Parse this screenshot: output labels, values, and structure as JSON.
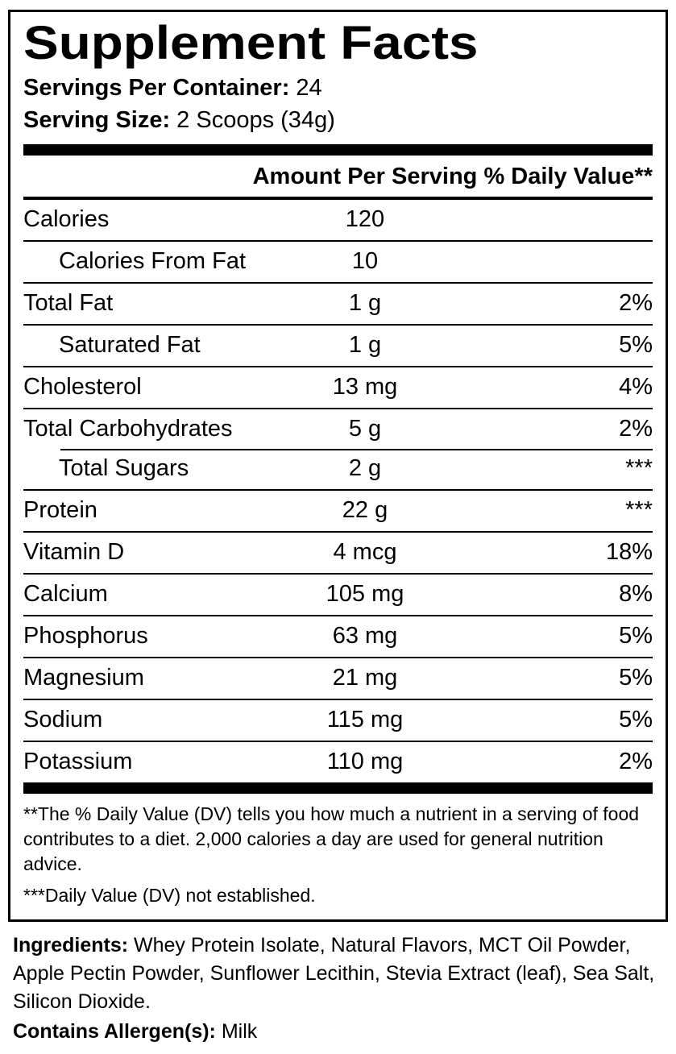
{
  "colors": {
    "text": "#000000",
    "background": "#ffffff"
  },
  "label": {
    "title": "Supplement Facts",
    "servings_per_container_label": "Servings Per Container:",
    "servings_per_container_value": " 24",
    "serving_size_label": "Serving Size:",
    "serving_size_value": " 2 Scoops (34g)",
    "columns": {
      "amount": "Amount Per Serving",
      "dv": "% Daily Value**"
    },
    "rows": [
      {
        "name": "Calories",
        "amount": "120",
        "dv": "",
        "indent": false
      },
      {
        "name": "Calories From Fat",
        "amount": "10",
        "dv": "",
        "indent": true
      },
      {
        "name": "Total Fat",
        "amount": "1 g",
        "dv": "2%",
        "indent": false
      },
      {
        "name": "Saturated Fat",
        "amount": "1 g",
        "dv": "5%",
        "indent": true
      },
      {
        "name": "Cholesterol",
        "amount": "13 mg",
        "dv": "4%",
        "indent": false
      },
      {
        "name": "Total Carbohydrates",
        "amount": "5 g",
        "dv": "2%",
        "indent": false
      },
      {
        "name": "Total Sugars",
        "amount": "2 g",
        "dv": "***",
        "indent": true
      },
      {
        "name": "Protein",
        "amount": "22 g",
        "dv": "***",
        "indent": false
      },
      {
        "name": "Vitamin D",
        "amount": "4 mcg",
        "dv": "18%",
        "indent": false
      },
      {
        "name": "Calcium",
        "amount": "105 mg",
        "dv": "8%",
        "indent": false
      },
      {
        "name": "Phosphorus",
        "amount": "63 mg",
        "dv": "5%",
        "indent": false
      },
      {
        "name": "Magnesium",
        "amount": "21 mg",
        "dv": "5%",
        "indent": false
      },
      {
        "name": "Sodium",
        "amount": "115 mg",
        "dv": "5%",
        "indent": false
      },
      {
        "name": "Potassium",
        "amount": "110 mg",
        "dv": "2%",
        "indent": false
      }
    ],
    "footnotes": {
      "daily_value": "**The % Daily Value (DV) tells you how much a nutrient in a serving of food contributes to a diet. 2,000 calories a day are used for general nutrition advice.",
      "not_established": "***Daily Value (DV) not established."
    },
    "ingredients_label": "Ingredients:",
    "ingredients_value": " Whey Protein Isolate, Natural Flavors, MCT Oil Powder, Apple Pectin Powder, Sunflower Lecithin, Stevia Extract (leaf), Sea Salt, Silicon Dioxide.",
    "allergens_label": "Contains Allergen(s):",
    "allergens_value": " Milk"
  }
}
